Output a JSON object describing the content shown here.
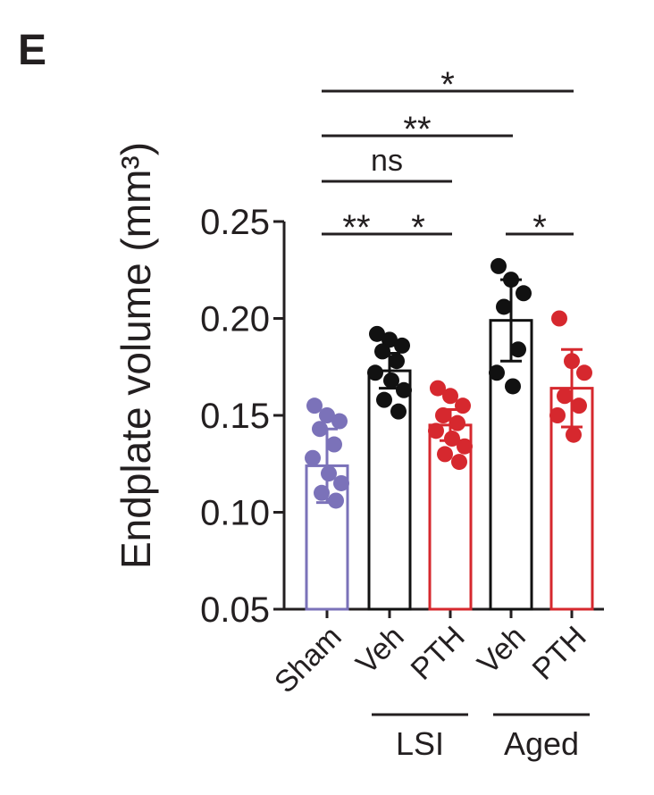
{
  "panel_label": "E",
  "chart_data": {
    "type": "bar",
    "ylabel": "Endplate volume (mm³)",
    "ylim": [
      0.05,
      0.25
    ],
    "yticks": [
      "0.05",
      "0.10",
      "0.15",
      "0.20",
      "0.25"
    ],
    "categories": [
      "Sham",
      "Veh",
      "PTH",
      "Veh",
      "PTH"
    ],
    "groups": [
      {
        "label": "LSI",
        "categories": [
          1,
          2
        ]
      },
      {
        "label": "Aged",
        "categories": [
          3,
          4
        ]
      }
    ],
    "series": [
      {
        "values": [
          0.124,
          0.173,
          0.145,
          0.199,
          0.164
        ],
        "errors": [
          0.019,
          0.009,
          0.008,
          0.021,
          0.02
        ],
        "colors": [
          "#7b72b9",
          "#111111",
          "#d6282e",
          "#111111",
          "#d6282e"
        ]
      }
    ],
    "points": [
      [
        0.155,
        0.15,
        0.147,
        0.143,
        0.135,
        0.128,
        0.12,
        0.115,
        0.11,
        0.106
      ],
      [
        0.192,
        0.189,
        0.186,
        0.183,
        0.178,
        0.172,
        0.168,
        0.163,
        0.158,
        0.152
      ],
      [
        0.164,
        0.16,
        0.155,
        0.15,
        0.146,
        0.142,
        0.138,
        0.134,
        0.13,
        0.126
      ],
      [
        0.227,
        0.22,
        0.213,
        0.206,
        0.184,
        0.172,
        0.165
      ],
      [
        0.2,
        0.178,
        0.172,
        0.16,
        0.155,
        0.15,
        0.14
      ]
    ],
    "significance": [
      {
        "from": 0,
        "to": 1,
        "label": "**"
      },
      {
        "from": 1,
        "to": 2,
        "label": "*"
      },
      {
        "from": 3,
        "to": 4,
        "label": "*"
      },
      {
        "from": 0,
        "to": 2,
        "label": "ns"
      },
      {
        "from": 0,
        "to": 3,
        "label": "**"
      },
      {
        "from": 0,
        "to": 4,
        "label": "*"
      }
    ],
    "grid": false,
    "legend": "none"
  }
}
